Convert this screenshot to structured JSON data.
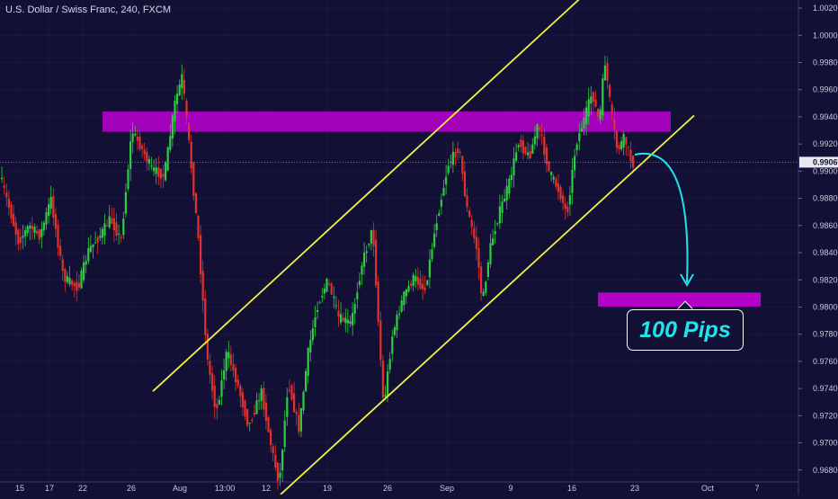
{
  "chart_title": "U.S. Dollar / Swiss Franc, 240, FXCM",
  "annotation": "100 Pips",
  "current_price_label": "0.99066",
  "colors": {
    "background": "#131036",
    "bull": "#2ecc40",
    "bear": "#e0322c",
    "channel": "#f4f048",
    "zone": "#b400c8",
    "arrow": "#22e3ec",
    "grid": "#2a2750"
  },
  "chart_data": {
    "type": "candlestick",
    "title": "U.S. Dollar / Swiss Franc, 240, FXCM",
    "symbol": "USD/CHF",
    "timeframe": "240",
    "source": "FXCM",
    "ylim": [
      0.9662,
      1.0026
    ],
    "y_ticks": [
      "0.96800",
      "0.97000",
      "0.97200",
      "0.97400",
      "0.97600",
      "0.97800",
      "0.98000",
      "0.98200",
      "0.98400",
      "0.98600",
      "0.98800",
      "0.99000",
      "0.99200",
      "0.99400",
      "0.99600",
      "0.99800",
      "1.00000",
      "1.00200"
    ],
    "x_ticks": [
      "15",
      "17",
      "22",
      "26",
      "Aug",
      "13:00",
      "12",
      "19",
      "26",
      "Sep",
      "9",
      "16",
      "23",
      "Oct",
      "7"
    ],
    "current_price": 0.99066,
    "price_path": [
      [
        0,
        0.99
      ],
      [
        12,
        0.9872
      ],
      [
        22,
        0.9848
      ],
      [
        34,
        0.986
      ],
      [
        46,
        0.9852
      ],
      [
        58,
        0.988
      ],
      [
        72,
        0.9822
      ],
      [
        88,
        0.9814
      ],
      [
        100,
        0.9842
      ],
      [
        112,
        0.9852
      ],
      [
        124,
        0.9865
      ],
      [
        136,
        0.9849
      ],
      [
        148,
        0.993
      ],
      [
        158,
        0.9918
      ],
      [
        170,
        0.9902
      ],
      [
        184,
        0.9896
      ],
      [
        196,
        0.995
      ],
      [
        204,
        0.997
      ],
      [
        212,
        0.9918
      ],
      [
        222,
        0.985
      ],
      [
        232,
        0.9762
      ],
      [
        242,
        0.9722
      ],
      [
        254,
        0.9768
      ],
      [
        266,
        0.9742
      ],
      [
        278,
        0.9712
      ],
      [
        292,
        0.9738
      ],
      [
        304,
        0.9694
      ],
      [
        312,
        0.967
      ],
      [
        322,
        0.9745
      ],
      [
        334,
        0.971
      ],
      [
        344,
        0.9766
      ],
      [
        354,
        0.98
      ],
      [
        366,
        0.982
      ],
      [
        378,
        0.9792
      ],
      [
        392,
        0.9788
      ],
      [
        404,
        0.9832
      ],
      [
        416,
        0.9858
      ],
      [
        428,
        0.9726
      ],
      [
        438,
        0.978
      ],
      [
        450,
        0.9808
      ],
      [
        462,
        0.9822
      ],
      [
        474,
        0.9812
      ],
      [
        486,
        0.986
      ],
      [
        500,
        0.9905
      ],
      [
        512,
        0.9918
      ],
      [
        520,
        0.9875
      ],
      [
        532,
        0.9842
      ],
      [
        538,
        0.9802
      ],
      [
        546,
        0.9842
      ],
      [
        556,
        0.9868
      ],
      [
        568,
        0.9892
      ],
      [
        578,
        0.9922
      ],
      [
        590,
        0.991
      ],
      [
        600,
        0.9935
      ],
      [
        612,
        0.99
      ],
      [
        624,
        0.9884
      ],
      [
        632,
        0.9868
      ],
      [
        642,
        0.992
      ],
      [
        652,
        0.994
      ],
      [
        660,
        0.9958
      ],
      [
        668,
        0.9935
      ],
      [
        674,
        0.9982
      ],
      [
        680,
        0.995
      ],
      [
        688,
        0.9915
      ],
      [
        696,
        0.9925
      ],
      [
        704,
        0.9906
      ]
    ],
    "resistance_zone": [
      0.9929,
      0.9944
    ],
    "target_zone": [
      0.9803,
      0.9808
    ],
    "channel_upper": [
      [
        0.9738,
        170
      ],
      [
        1.0038,
        663
      ]
    ],
    "channel_lower": [
      [
        0.9662,
        312
      ],
      [
        0.9941,
        772
      ]
    ]
  }
}
